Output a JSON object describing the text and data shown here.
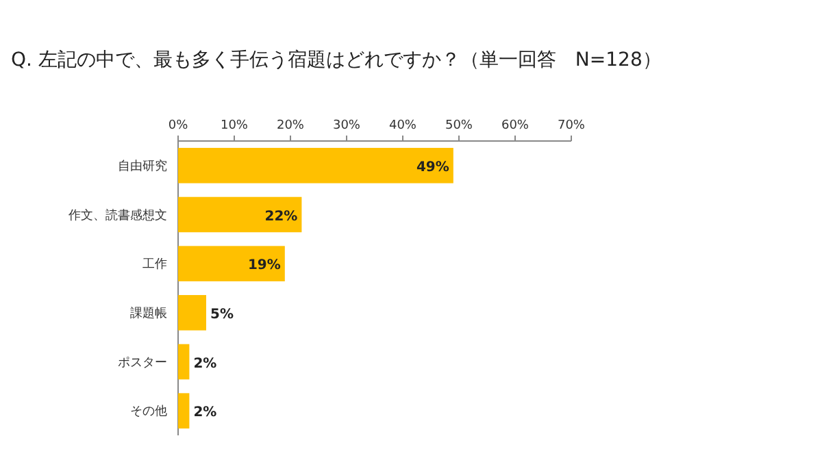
{
  "chart_data": {
    "type": "bar",
    "orientation": "horizontal",
    "title": "Q.  左記の中で、最も多く手伝う宿題はどれですか？（単一回答　N=128）",
    "categories": [
      "自由研究",
      "作文、読書感想文",
      "工作",
      "課題帳",
      "ポスター",
      "その他"
    ],
    "values": [
      49,
      22,
      19,
      5,
      2,
      2
    ],
    "value_labels": [
      "49%",
      "22%",
      "19%",
      "5%",
      "2%",
      "2%"
    ],
    "color": "#ffc000",
    "xlim": [
      0,
      70
    ],
    "xticks": [
      {
        "value": 0,
        "label": "0%"
      },
      {
        "value": 10,
        "label": "10%"
      },
      {
        "value": 20,
        "label": "20%"
      },
      {
        "value": 30,
        "label": "30%"
      },
      {
        "value": 40,
        "label": "40%"
      },
      {
        "value": 50,
        "label": "50%"
      },
      {
        "value": 60,
        "label": "60%"
      },
      {
        "value": 70,
        "label": "70%"
      }
    ],
    "grid": false
  }
}
